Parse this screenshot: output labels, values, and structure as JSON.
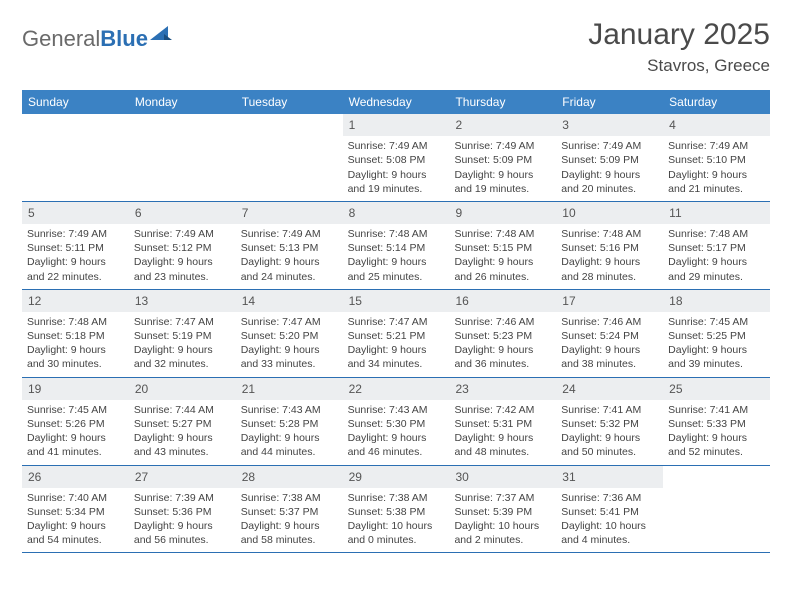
{
  "logo": {
    "text1": "General",
    "text2": "Blue"
  },
  "title": "January 2025",
  "location": "Stavros, Greece",
  "colors": {
    "header_bg": "#3b82c4",
    "header_text": "#ffffff",
    "daynum_bg": "#eceef0",
    "border": "#2b6fb3",
    "logo_gray": "#6a6a6a",
    "logo_blue": "#2b6fb3",
    "body_text": "#4a4a4a"
  },
  "day_names": [
    "Sunday",
    "Monday",
    "Tuesday",
    "Wednesday",
    "Thursday",
    "Friday",
    "Saturday"
  ],
  "weeks": [
    [
      {
        "num": "",
        "empty": true
      },
      {
        "num": "",
        "empty": true
      },
      {
        "num": "",
        "empty": true
      },
      {
        "num": "1",
        "sunrise": "Sunrise: 7:49 AM",
        "sunset": "Sunset: 5:08 PM",
        "daylight": "Daylight: 9 hours and 19 minutes."
      },
      {
        "num": "2",
        "sunrise": "Sunrise: 7:49 AM",
        "sunset": "Sunset: 5:09 PM",
        "daylight": "Daylight: 9 hours and 19 minutes."
      },
      {
        "num": "3",
        "sunrise": "Sunrise: 7:49 AM",
        "sunset": "Sunset: 5:09 PM",
        "daylight": "Daylight: 9 hours and 20 minutes."
      },
      {
        "num": "4",
        "sunrise": "Sunrise: 7:49 AM",
        "sunset": "Sunset: 5:10 PM",
        "daylight": "Daylight: 9 hours and 21 minutes."
      }
    ],
    [
      {
        "num": "5",
        "sunrise": "Sunrise: 7:49 AM",
        "sunset": "Sunset: 5:11 PM",
        "daylight": "Daylight: 9 hours and 22 minutes."
      },
      {
        "num": "6",
        "sunrise": "Sunrise: 7:49 AM",
        "sunset": "Sunset: 5:12 PM",
        "daylight": "Daylight: 9 hours and 23 minutes."
      },
      {
        "num": "7",
        "sunrise": "Sunrise: 7:49 AM",
        "sunset": "Sunset: 5:13 PM",
        "daylight": "Daylight: 9 hours and 24 minutes."
      },
      {
        "num": "8",
        "sunrise": "Sunrise: 7:48 AM",
        "sunset": "Sunset: 5:14 PM",
        "daylight": "Daylight: 9 hours and 25 minutes."
      },
      {
        "num": "9",
        "sunrise": "Sunrise: 7:48 AM",
        "sunset": "Sunset: 5:15 PM",
        "daylight": "Daylight: 9 hours and 26 minutes."
      },
      {
        "num": "10",
        "sunrise": "Sunrise: 7:48 AM",
        "sunset": "Sunset: 5:16 PM",
        "daylight": "Daylight: 9 hours and 28 minutes."
      },
      {
        "num": "11",
        "sunrise": "Sunrise: 7:48 AM",
        "sunset": "Sunset: 5:17 PM",
        "daylight": "Daylight: 9 hours and 29 minutes."
      }
    ],
    [
      {
        "num": "12",
        "sunrise": "Sunrise: 7:48 AM",
        "sunset": "Sunset: 5:18 PM",
        "daylight": "Daylight: 9 hours and 30 minutes."
      },
      {
        "num": "13",
        "sunrise": "Sunrise: 7:47 AM",
        "sunset": "Sunset: 5:19 PM",
        "daylight": "Daylight: 9 hours and 32 minutes."
      },
      {
        "num": "14",
        "sunrise": "Sunrise: 7:47 AM",
        "sunset": "Sunset: 5:20 PM",
        "daylight": "Daylight: 9 hours and 33 minutes."
      },
      {
        "num": "15",
        "sunrise": "Sunrise: 7:47 AM",
        "sunset": "Sunset: 5:21 PM",
        "daylight": "Daylight: 9 hours and 34 minutes."
      },
      {
        "num": "16",
        "sunrise": "Sunrise: 7:46 AM",
        "sunset": "Sunset: 5:23 PM",
        "daylight": "Daylight: 9 hours and 36 minutes."
      },
      {
        "num": "17",
        "sunrise": "Sunrise: 7:46 AM",
        "sunset": "Sunset: 5:24 PM",
        "daylight": "Daylight: 9 hours and 38 minutes."
      },
      {
        "num": "18",
        "sunrise": "Sunrise: 7:45 AM",
        "sunset": "Sunset: 5:25 PM",
        "daylight": "Daylight: 9 hours and 39 minutes."
      }
    ],
    [
      {
        "num": "19",
        "sunrise": "Sunrise: 7:45 AM",
        "sunset": "Sunset: 5:26 PM",
        "daylight": "Daylight: 9 hours and 41 minutes."
      },
      {
        "num": "20",
        "sunrise": "Sunrise: 7:44 AM",
        "sunset": "Sunset: 5:27 PM",
        "daylight": "Daylight: 9 hours and 43 minutes."
      },
      {
        "num": "21",
        "sunrise": "Sunrise: 7:43 AM",
        "sunset": "Sunset: 5:28 PM",
        "daylight": "Daylight: 9 hours and 44 minutes."
      },
      {
        "num": "22",
        "sunrise": "Sunrise: 7:43 AM",
        "sunset": "Sunset: 5:30 PM",
        "daylight": "Daylight: 9 hours and 46 minutes."
      },
      {
        "num": "23",
        "sunrise": "Sunrise: 7:42 AM",
        "sunset": "Sunset: 5:31 PM",
        "daylight": "Daylight: 9 hours and 48 minutes."
      },
      {
        "num": "24",
        "sunrise": "Sunrise: 7:41 AM",
        "sunset": "Sunset: 5:32 PM",
        "daylight": "Daylight: 9 hours and 50 minutes."
      },
      {
        "num": "25",
        "sunrise": "Sunrise: 7:41 AM",
        "sunset": "Sunset: 5:33 PM",
        "daylight": "Daylight: 9 hours and 52 minutes."
      }
    ],
    [
      {
        "num": "26",
        "sunrise": "Sunrise: 7:40 AM",
        "sunset": "Sunset: 5:34 PM",
        "daylight": "Daylight: 9 hours and 54 minutes."
      },
      {
        "num": "27",
        "sunrise": "Sunrise: 7:39 AM",
        "sunset": "Sunset: 5:36 PM",
        "daylight": "Daylight: 9 hours and 56 minutes."
      },
      {
        "num": "28",
        "sunrise": "Sunrise: 7:38 AM",
        "sunset": "Sunset: 5:37 PM",
        "daylight": "Daylight: 9 hours and 58 minutes."
      },
      {
        "num": "29",
        "sunrise": "Sunrise: 7:38 AM",
        "sunset": "Sunset: 5:38 PM",
        "daylight": "Daylight: 10 hours and 0 minutes."
      },
      {
        "num": "30",
        "sunrise": "Sunrise: 7:37 AM",
        "sunset": "Sunset: 5:39 PM",
        "daylight": "Daylight: 10 hours and 2 minutes."
      },
      {
        "num": "31",
        "sunrise": "Sunrise: 7:36 AM",
        "sunset": "Sunset: 5:41 PM",
        "daylight": "Daylight: 10 hours and 4 minutes."
      },
      {
        "num": "",
        "empty": true
      }
    ]
  ]
}
